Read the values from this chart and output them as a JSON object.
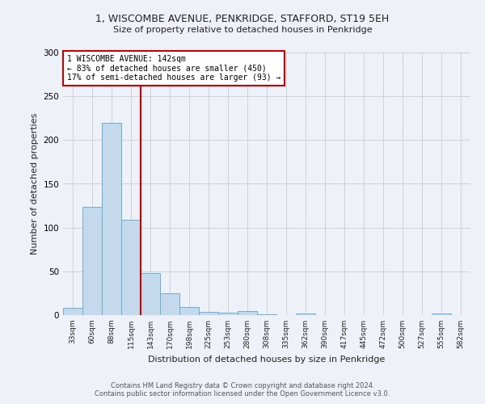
{
  "title1": "1, WISCOMBE AVENUE, PENKRIDGE, STAFFORD, ST19 5EH",
  "title2": "Size of property relative to detached houses in Penkridge",
  "xlabel": "Distribution of detached houses by size in Penkridge",
  "ylabel": "Number of detached properties",
  "categories": [
    "33sqm",
    "60sqm",
    "88sqm",
    "115sqm",
    "143sqm",
    "170sqm",
    "198sqm",
    "225sqm",
    "253sqm",
    "280sqm",
    "308sqm",
    "335sqm",
    "362sqm",
    "390sqm",
    "417sqm",
    "445sqm",
    "472sqm",
    "500sqm",
    "527sqm",
    "555sqm",
    "582sqm"
  ],
  "values": [
    8,
    124,
    220,
    109,
    48,
    25,
    9,
    4,
    3,
    5,
    1,
    0,
    2,
    0,
    0,
    0,
    0,
    0,
    0,
    2,
    0
  ],
  "bar_color": "#c5d9ec",
  "bar_edge_color": "#6aaed6",
  "vline_color": "#cc0000",
  "annotation_line1": "1 WISCOMBE AVENUE: 142sqm",
  "annotation_line2": "← 83% of detached houses are smaller (450)",
  "annotation_line3": "17% of semi-detached houses are larger (93) →",
  "annotation_box_color": "#ffffff",
  "annotation_box_edge_color": "#cc0000",
  "ylim": [
    0,
    300
  ],
  "yticks": [
    0,
    50,
    100,
    150,
    200,
    250,
    300
  ],
  "grid_color": "#cccccc",
  "background_color": "#eef2f8",
  "footer1": "Contains HM Land Registry data © Crown copyright and database right 2024.",
  "footer2": "Contains public sector information licensed under the Open Government Licence v3.0."
}
